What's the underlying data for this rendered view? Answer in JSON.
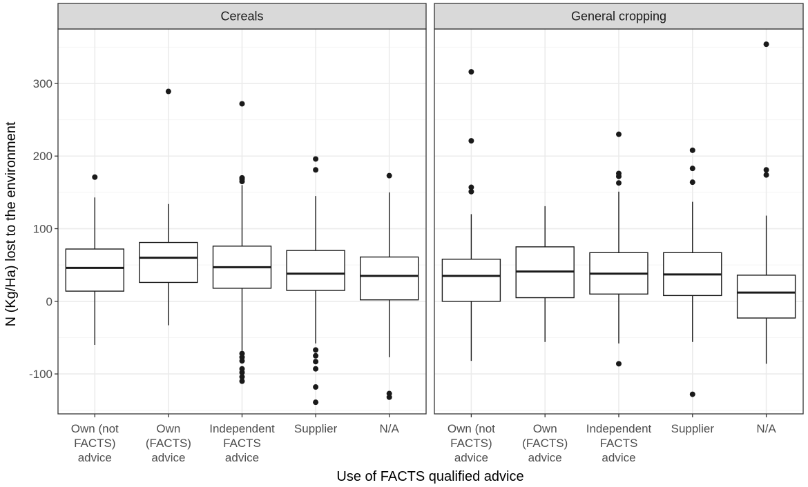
{
  "chart_data": {
    "type": "boxplot",
    "title": "",
    "xlabel": "Use of FACTS qualified advice",
    "ylabel": "N (Kg/Ha) lost to the environment",
    "ylim": [
      -155,
      375
    ],
    "y_ticks": [
      -100,
      0,
      100,
      200,
      300
    ],
    "y_tick_labels": [
      "-100",
      "0",
      "100",
      "200",
      "300"
    ],
    "categories": [
      "Own (not FACTS) advice",
      "Own (FACTS) advice",
      "Independent FACTS advice",
      "Supplier",
      "N/A"
    ],
    "category_label_lines": [
      [
        "Own (not",
        "FACTS)",
        "advice"
      ],
      [
        "Own",
        "(FACTS)",
        "advice"
      ],
      [
        "Independent",
        "FACTS",
        "advice"
      ],
      [
        "Supplier"
      ],
      [
        "N/A"
      ]
    ],
    "grid": true,
    "panels": [
      {
        "title": "Cereals",
        "boxes": [
          {
            "category": "Own (not FACTS) advice",
            "whisker_low": -60,
            "q1": 14,
            "median": 46,
            "q3": 72,
            "whisker_high": 143,
            "outliers": [
              171
            ]
          },
          {
            "category": "Own (FACTS) advice",
            "whisker_low": -33,
            "q1": 26,
            "median": 60,
            "q3": 81,
            "whisker_high": 134,
            "outliers": [
              289
            ]
          },
          {
            "category": "Independent FACTS advice",
            "whisker_low": -68,
            "q1": 18,
            "median": 47,
            "q3": 76,
            "whisker_high": 160,
            "outliers": [
              272,
              170,
              168,
              165,
              -72,
              -77,
              -82,
              -93,
              -98,
              -104,
              -110
            ]
          },
          {
            "category": "Supplier",
            "whisker_low": -58,
            "q1": 15,
            "median": 38,
            "q3": 70,
            "whisker_high": 145,
            "outliers": [
              196,
              181,
              -67,
              -75,
              -83,
              -93,
              -118,
              -139
            ]
          },
          {
            "category": "N/A",
            "whisker_low": -77,
            "q1": 2,
            "median": 35,
            "q3": 61,
            "whisker_high": 150,
            "outliers": [
              173,
              -127,
              -132
            ]
          }
        ]
      },
      {
        "title": "General cropping",
        "boxes": [
          {
            "category": "Own (not FACTS) advice",
            "whisker_low": -82,
            "q1": 0,
            "median": 35,
            "q3": 58,
            "whisker_high": 120,
            "outliers": [
              316,
              221,
              157,
              151
            ]
          },
          {
            "category": "Own (FACTS) advice",
            "whisker_low": -56,
            "q1": 5,
            "median": 41,
            "q3": 75,
            "whisker_high": 131,
            "outliers": []
          },
          {
            "category": "Independent FACTS advice",
            "whisker_low": -58,
            "q1": 10,
            "median": 38,
            "q3": 67,
            "whisker_high": 151,
            "outliers": [
              230,
              176,
              172,
              163,
              -86
            ]
          },
          {
            "category": "Supplier",
            "whisker_low": -56,
            "q1": 8,
            "median": 37,
            "q3": 67,
            "whisker_high": 137,
            "outliers": [
              208,
              183,
              164,
              -128
            ]
          },
          {
            "category": "N/A",
            "whisker_low": -86,
            "q1": -23,
            "median": 12,
            "q3": 36,
            "whisker_high": 118,
            "outliers": [
              354,
              181,
              174
            ]
          }
        ]
      }
    ],
    "colors": {
      "panel_border": "#333333",
      "strip_fill": "#d9d9d9",
      "grid_major": "#ebebeb",
      "grid_minor": "#f5f5f5",
      "box_stroke": "#1a1a1a",
      "box_fill": "#ffffff",
      "point": "#1a1a1a",
      "tick_text": "#4d4d4d"
    }
  }
}
